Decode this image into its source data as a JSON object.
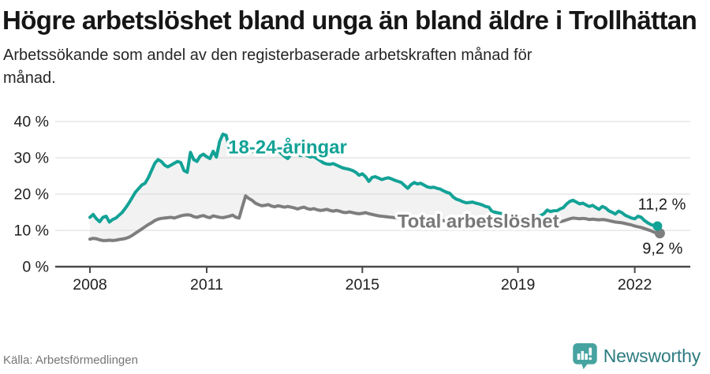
{
  "header": {
    "title": "Högre arbetslöshet bland unga än bland äldre i Trollhättan",
    "subtitle": "Arbetssökande som andel av den registerbaserade arbetskraften månad för månad."
  },
  "footer": {
    "source": "Källa: Arbetsförmedlingen",
    "brand": "Newsworthy",
    "brand_icon": "bar-chart-speech-bubble-icon",
    "brand_icon_color": "#46a3a0",
    "brand_text_color": "#2d7c80"
  },
  "chart_data": {
    "type": "line",
    "title": "Högre arbetslöshet bland unga än bland äldre i Trollhättan",
    "subtitle": "Arbetssökande som andel av den registerbaserade arbetskraften månad för månad.",
    "xlabel": "",
    "ylabel": "",
    "x_unit": "month",
    "x_start_year": 2008,
    "x_months_step": 1,
    "x_end": "2022-08",
    "xlim": [
      2007.1,
      2023.4
    ],
    "ylim": [
      0,
      43
    ],
    "grid": true,
    "x_ticks": [
      2008,
      2011,
      2015,
      2019,
      2022
    ],
    "x_tick_labels": [
      "2008",
      "2011",
      "2015",
      "2019",
      "2022"
    ],
    "y_ticks": [
      0,
      10,
      20,
      30,
      40
    ],
    "y_tick_labels": [
      "0 %",
      "10 %",
      "20 %",
      "30 %",
      "40 %"
    ],
    "band_fill": "#f2f2f2",
    "grid_color": "#d8d8d8",
    "axis_color": "#4a4a4a",
    "tick_text_color": "#1e1e1e",
    "value_label_color": "#1a1a1a",
    "annotations": [
      {
        "text": "18-24-åringar",
        "x": 2011.55,
        "y": 31.2,
        "color": "#13a296"
      },
      {
        "text": "Total arbetslöshet",
        "x": 2015.9,
        "y": 10.8,
        "color": "#787878"
      }
    ],
    "series": [
      {
        "name": "18-24-åringar",
        "color": "#13a296",
        "end_value": 11.2,
        "end_label": "11,2 %",
        "values": [
          13.6,
          14.4,
          13.2,
          12.4,
          13.6,
          13.9,
          12.3,
          13.0,
          13.4,
          14.2,
          15.0,
          16.2,
          17.5,
          19.0,
          20.5,
          21.5,
          22.5,
          23.0,
          24.5,
          26.5,
          28.5,
          29.5,
          29.0,
          28.0,
          27.5,
          28.0,
          28.5,
          29.0,
          28.7,
          26.5,
          26.0,
          31.5,
          29.5,
          29.0,
          30.5,
          31.0,
          30.3,
          29.8,
          31.8,
          30.2,
          34.5,
          36.5,
          36.2,
          32.5,
          33.5,
          33.0,
          32.7,
          33.2,
          33.6,
          34.0,
          32.0,
          31.4,
          32.5,
          33.3,
          33.0,
          32.8,
          32.5,
          32.3,
          32.0,
          31.2,
          30.4,
          29.8,
          31.0,
          32.3,
          31.0,
          30.6,
          31.0,
          30.6,
          30.2,
          30.4,
          29.8,
          29.2,
          28.6,
          28.3,
          28.2,
          28.4,
          28.0,
          27.6,
          27.2,
          27.0,
          26.8,
          26.5,
          26.0,
          25.2,
          25.6,
          24.8,
          23.5,
          24.6,
          24.8,
          24.4,
          24.0,
          24.3,
          24.5,
          24.2,
          23.8,
          23.5,
          23.2,
          22.4,
          21.6,
          22.6,
          23.2,
          22.8,
          23.0,
          22.5,
          22.0,
          21.8,
          21.9,
          21.6,
          21.4,
          20.9,
          20.5,
          20.2,
          19.2,
          18.6,
          18.3,
          17.9,
          17.6,
          17.7,
          17.8,
          17.5,
          17.3,
          17.0,
          16.6,
          16.4,
          15.2,
          15.0,
          14.8,
          14.6,
          14.4,
          14.3,
          14.2,
          14.3,
          13.8,
          13.5,
          13.4,
          13.6,
          13.9,
          14.0,
          13.9,
          14.1,
          14.6,
          15.6,
          15.2,
          15.4,
          15.4,
          15.9,
          16.3,
          17.3,
          18.0,
          18.3,
          17.8,
          17.3,
          17.5,
          17.0,
          16.6,
          16.9,
          16.3,
          15.8,
          16.6,
          16.2,
          15.4,
          15.0,
          14.5,
          15.3,
          14.9,
          14.2,
          13.8,
          13.4,
          13.2,
          13.9,
          13.6,
          12.7,
          12.1,
          11.6,
          11.3,
          11.2
        ]
      },
      {
        "name": "Total arbetslöshet",
        "color": "#7e7e7e",
        "end_value": 9.2,
        "end_label": "9,2 %",
        "values": [
          7.6,
          7.8,
          7.7,
          7.4,
          7.2,
          7.2,
          7.3,
          7.2,
          7.3,
          7.5,
          7.6,
          7.8,
          8.1,
          8.6,
          9.2,
          9.8,
          10.4,
          11.0,
          11.6,
          12.1,
          12.7,
          13.1,
          13.3,
          13.4,
          13.5,
          13.6,
          13.4,
          13.7,
          14.0,
          14.2,
          14.3,
          14.2,
          13.8,
          13.6,
          13.9,
          14.1,
          13.7,
          13.5,
          14.0,
          13.8,
          13.6,
          13.5,
          13.7,
          13.9,
          14.2,
          13.6,
          13.4,
          16.5,
          19.5,
          18.8,
          18.3,
          17.5,
          17.1,
          16.8,
          16.9,
          17.1,
          16.7,
          16.5,
          16.8,
          16.6,
          16.4,
          16.6,
          16.4,
          16.2,
          15.9,
          16.2,
          16.4,
          16.0,
          15.8,
          16.0,
          15.7,
          15.5,
          15.6,
          15.8,
          15.5,
          15.3,
          15.5,
          15.3,
          15.0,
          14.9,
          15.1,
          14.9,
          14.7,
          14.6,
          14.7,
          14.9,
          14.6,
          14.4,
          14.2,
          14.0,
          13.9,
          13.8,
          13.7,
          13.6,
          13.5,
          13.4,
          13.4,
          13.3,
          13.2,
          13.2,
          13.1,
          13.1,
          13.0,
          13.0,
          12.9,
          12.9,
          12.8,
          12.8,
          12.7,
          12.7,
          12.6,
          12.5,
          12.5,
          12.4,
          12.4,
          12.3,
          12.3,
          12.2,
          12.2,
          12.1,
          12.1,
          12.0,
          11.9,
          11.9,
          11.8,
          11.7,
          11.7,
          11.6,
          11.6,
          11.5,
          11.5,
          11.4,
          11.4,
          11.3,
          11.3,
          11.3,
          11.4,
          11.4,
          11.4,
          11.5,
          11.6,
          11.8,
          12.0,
          12.1,
          12.2,
          12.4,
          12.6,
          12.9,
          13.2,
          13.4,
          13.3,
          13.2,
          13.3,
          13.2,
          13.0,
          13.1,
          13.0,
          12.9,
          13.0,
          12.9,
          12.7,
          12.5,
          12.3,
          12.2,
          12.1,
          11.9,
          11.7,
          11.5,
          11.2,
          11.0,
          10.8,
          10.5,
          10.2,
          9.9,
          9.5,
          9.2
        ]
      }
    ]
  }
}
